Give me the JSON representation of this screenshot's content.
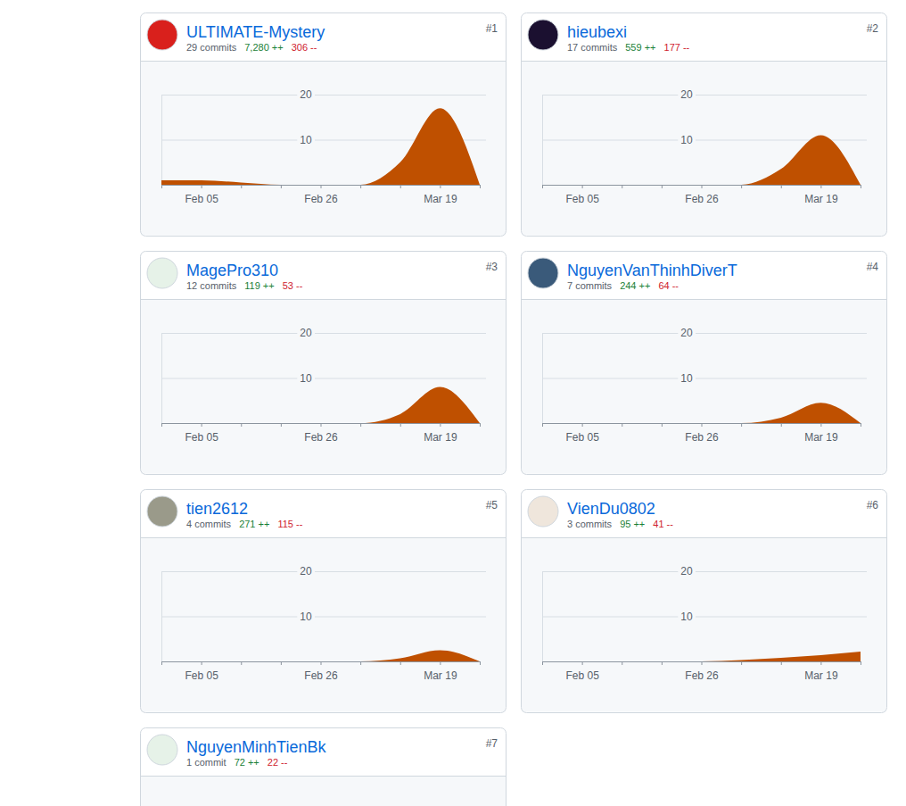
{
  "chart_data": [
    {
      "type": "area",
      "title": "ULTIMATE-Mystery",
      "rank": "#1",
      "commits": "29 commits",
      "additions": "7,280 ++",
      "deletions": "306 --",
      "categories": [
        null,
        "Feb 05",
        null,
        null,
        "Feb 26",
        null,
        null,
        "Mar 19",
        null
      ],
      "values": [
        1,
        1,
        0.5,
        0,
        0,
        0,
        5,
        17,
        0
      ],
      "color": "#bf5000",
      "ylim": [
        0,
        20
      ],
      "yticks": [
        10,
        20
      ],
      "grid": true
    },
    {
      "type": "area",
      "title": "hieubexi",
      "rank": "#2",
      "commits": "17 commits",
      "additions": "559 ++",
      "deletions": "177 --",
      "categories": [
        null,
        "Feb 05",
        null,
        null,
        "Feb 26",
        null,
        null,
        "Mar 19",
        null
      ],
      "values": [
        0,
        0,
        0,
        0,
        0,
        0,
        3.5,
        11,
        0
      ],
      "color": "#bf5000",
      "ylim": [
        0,
        20
      ],
      "yticks": [
        10,
        20
      ],
      "grid": true
    },
    {
      "type": "area",
      "title": "MagePro310",
      "rank": "#3",
      "commits": "12 commits",
      "additions": "119 ++",
      "deletions": "53 --",
      "categories": [
        null,
        "Feb 05",
        null,
        null,
        "Feb 26",
        null,
        null,
        "Mar 19",
        null
      ],
      "values": [
        0,
        0,
        0,
        0,
        0,
        0,
        2,
        8,
        0
      ],
      "color": "#bf5000",
      "ylim": [
        0,
        20
      ],
      "yticks": [
        10,
        20
      ],
      "grid": true
    },
    {
      "type": "area",
      "title": "NguyenVanThinhDiverT",
      "rank": "#4",
      "commits": "7 commits",
      "additions": "244 ++",
      "deletions": "64 --",
      "categories": [
        null,
        "Feb 05",
        null,
        null,
        "Feb 26",
        null,
        null,
        "Mar 19",
        null
      ],
      "values": [
        0,
        0,
        0,
        0,
        0,
        0,
        1.2,
        4.5,
        0
      ],
      "color": "#bf5000",
      "ylim": [
        0,
        20
      ],
      "yticks": [
        10,
        20
      ],
      "grid": true
    },
    {
      "type": "area",
      "title": "tien2612",
      "rank": "#5",
      "commits": "4 commits",
      "additions": "271 ++",
      "deletions": "115 --",
      "categories": [
        null,
        "Feb 05",
        null,
        null,
        "Feb 26",
        null,
        null,
        "Mar 19",
        null
      ],
      "values": [
        0,
        0,
        0,
        0,
        0,
        0,
        0.7,
        2.5,
        0
      ],
      "color": "#bf5000",
      "ylim": [
        0,
        20
      ],
      "yticks": [
        10,
        20
      ],
      "grid": true
    },
    {
      "type": "area",
      "title": "VienDu0802",
      "rank": "#6",
      "commits": "3 commits",
      "additions": "95 ++",
      "deletions": "41 --",
      "categories": [
        null,
        "Feb 05",
        null,
        null,
        "Feb 26",
        null,
        null,
        "Mar 19",
        null
      ],
      "values": [
        0,
        0,
        0,
        0,
        0,
        0.3,
        0.8,
        1.4,
        2.2
      ],
      "color": "#bf5000",
      "ylim": [
        0,
        20
      ],
      "yticks": [
        10,
        20
      ],
      "grid": true
    },
    {
      "type": "area",
      "title": "NguyenMinhTienBk",
      "rank": "#7",
      "commits": "1 commit",
      "additions": "72 ++",
      "deletions": "22 --"
    }
  ]
}
